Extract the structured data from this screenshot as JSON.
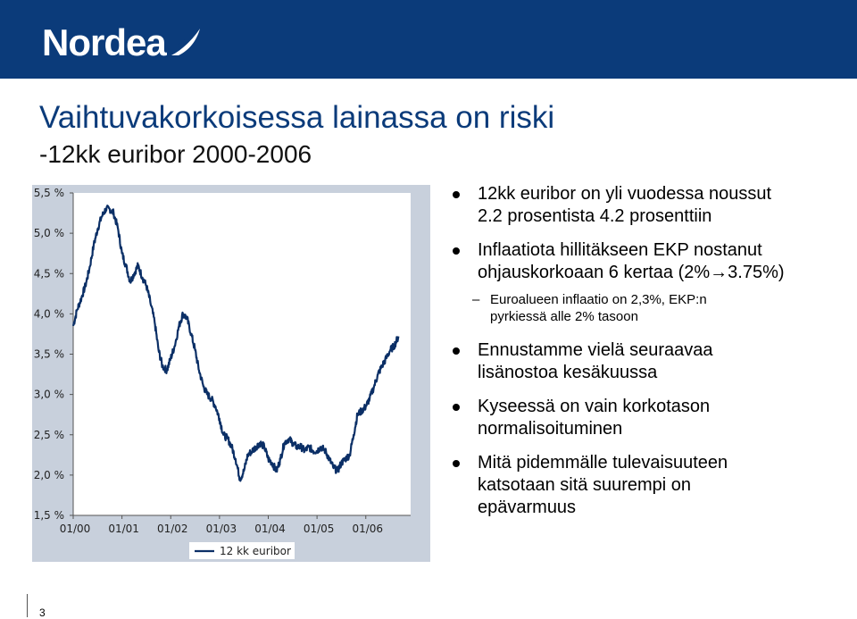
{
  "brand": {
    "name": "Nordea",
    "color": "#0b3b7a"
  },
  "slide": {
    "title": "Vaihtuvakorkoisessa lainassa on riski",
    "subtitle": "-12kk euribor 2000-2006",
    "page_number": "3"
  },
  "bullets": [
    {
      "text_lines": [
        "12kk euribor on yli vuodessa noussut",
        "2.2 prosentista 4.2 prosenttiin"
      ]
    },
    {
      "text_lines": [
        "Inflaatiota hillitäkseen EKP nostanut",
        "ohjauskorkoaan 6 kertaa (2%→3.75%)"
      ],
      "sub": {
        "text_lines": [
          "Euroalueen inflaatio on 2,3%, EKP:n",
          "pyrkiessä alle 2% tasoon"
        ]
      }
    },
    {
      "text_lines": [
        "Ennustamme vielä seuraavaa",
        "lisänostoa kesäkuussa"
      ]
    },
    {
      "text_lines": [
        "Kyseessä on vain korkotason",
        "normalisoituminen"
      ]
    },
    {
      "text_lines": [
        "Mitä pidemmälle tulevaisuuteen",
        "katsotaan sitä suurempi on",
        "epävarmuus"
      ]
    }
  ],
  "chart_data": {
    "type": "line",
    "title": "",
    "xlabel": "",
    "ylabel": "",
    "ylim": [
      1.5,
      5.5
    ],
    "xlim": [
      2000.0,
      2006.92
    ],
    "y_ticks": [
      "5,5 %",
      "5,0 %",
      "4,5 %",
      "4,0 %",
      "3,5 %",
      "3,0 %",
      "2,5 %",
      "2,0 %",
      "1,5 %"
    ],
    "y_tick_values": [
      5.5,
      5.0,
      4.5,
      4.0,
      3.5,
      3.0,
      2.5,
      2.0,
      1.5
    ],
    "x_ticks": [
      "01/00",
      "01/01",
      "01/02",
      "01/03",
      "01/04",
      "01/05",
      "01/06"
    ],
    "x_tick_values": [
      2000,
      2001,
      2002,
      2003,
      2004,
      2005,
      2006
    ],
    "grid": false,
    "legend_position": "bottom",
    "series": [
      {
        "name": "12 kk euribor",
        "color": "#0b2f66",
        "points": [
          [
            2000.0,
            3.85
          ],
          [
            2000.08,
            4.05
          ],
          [
            2000.17,
            4.2
          ],
          [
            2000.25,
            4.35
          ],
          [
            2000.33,
            4.55
          ],
          [
            2000.42,
            4.85
          ],
          [
            2000.5,
            5.05
          ],
          [
            2000.58,
            5.2
          ],
          [
            2000.67,
            5.3
          ],
          [
            2000.75,
            5.3
          ],
          [
            2000.83,
            5.25
          ],
          [
            2000.92,
            5.05
          ],
          [
            2001.0,
            4.75
          ],
          [
            2001.08,
            4.6
          ],
          [
            2001.17,
            4.4
          ],
          [
            2001.25,
            4.5
          ],
          [
            2001.33,
            4.6
          ],
          [
            2001.42,
            4.45
          ],
          [
            2001.5,
            4.35
          ],
          [
            2001.58,
            4.15
          ],
          [
            2001.67,
            3.9
          ],
          [
            2001.75,
            3.55
          ],
          [
            2001.83,
            3.35
          ],
          [
            2001.92,
            3.3
          ],
          [
            2002.0,
            3.45
          ],
          [
            2002.08,
            3.6
          ],
          [
            2002.17,
            3.85
          ],
          [
            2002.25,
            4.0
          ],
          [
            2002.33,
            3.95
          ],
          [
            2002.42,
            3.75
          ],
          [
            2002.5,
            3.55
          ],
          [
            2002.58,
            3.3
          ],
          [
            2002.67,
            3.1
          ],
          [
            2002.75,
            3.0
          ],
          [
            2002.83,
            2.95
          ],
          [
            2002.92,
            2.85
          ],
          [
            2003.0,
            2.7
          ],
          [
            2003.08,
            2.5
          ],
          [
            2003.17,
            2.45
          ],
          [
            2003.25,
            2.35
          ],
          [
            2003.33,
            2.2
          ],
          [
            2003.42,
            1.95
          ],
          [
            2003.5,
            2.05
          ],
          [
            2003.58,
            2.25
          ],
          [
            2003.67,
            2.3
          ],
          [
            2003.75,
            2.35
          ],
          [
            2003.83,
            2.4
          ],
          [
            2003.92,
            2.35
          ],
          [
            2004.0,
            2.2
          ],
          [
            2004.08,
            2.15
          ],
          [
            2004.17,
            2.05
          ],
          [
            2004.25,
            2.2
          ],
          [
            2004.33,
            2.4
          ],
          [
            2004.42,
            2.45
          ],
          [
            2004.5,
            2.4
          ],
          [
            2004.58,
            2.35
          ],
          [
            2004.67,
            2.35
          ],
          [
            2004.75,
            2.3
          ],
          [
            2004.83,
            2.35
          ],
          [
            2004.92,
            2.3
          ],
          [
            2005.0,
            2.3
          ],
          [
            2005.08,
            2.35
          ],
          [
            2005.17,
            2.3
          ],
          [
            2005.25,
            2.2
          ],
          [
            2005.33,
            2.1
          ],
          [
            2005.42,
            2.05
          ],
          [
            2005.5,
            2.15
          ],
          [
            2005.58,
            2.2
          ],
          [
            2005.67,
            2.25
          ],
          [
            2005.75,
            2.5
          ],
          [
            2005.83,
            2.75
          ],
          [
            2005.92,
            2.8
          ],
          [
            2006.0,
            2.85
          ],
          [
            2006.08,
            2.95
          ],
          [
            2006.17,
            3.1
          ],
          [
            2006.25,
            3.25
          ],
          [
            2006.33,
            3.35
          ],
          [
            2006.42,
            3.45
          ],
          [
            2006.5,
            3.55
          ],
          [
            2006.58,
            3.6
          ],
          [
            2006.67,
            3.72
          ]
        ]
      }
    ]
  }
}
